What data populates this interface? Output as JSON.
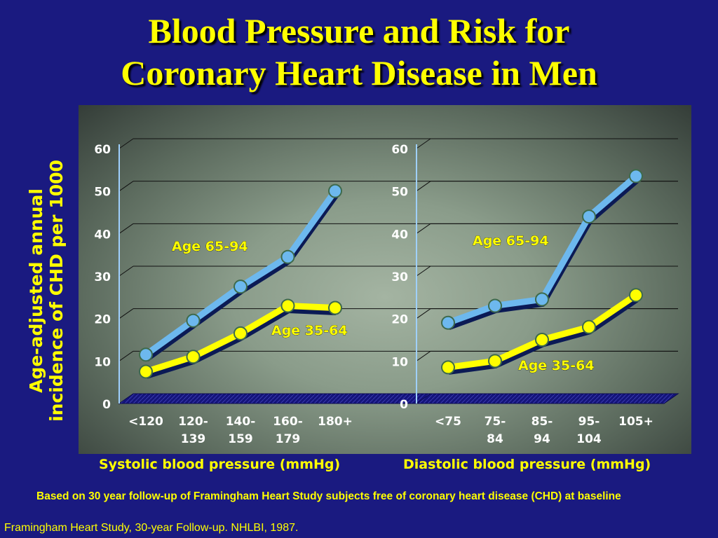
{
  "slide": {
    "title_line1": "Blood Pressure and Risk for",
    "title_line2": "Coronary Heart Disease in Men",
    "ylabel_line1": "Age-adjusted annual",
    "ylabel_line2": "incidence of CHD per 1000",
    "footnote": "Based on 30 year follow-up of Framingham Heart Study subjects free of coronary heart disease (CHD) at baseline",
    "source": "Framingham Heart Study, 30-year Follow-up. NHLBI, 1987."
  },
  "colors": {
    "background": "#1a1a80",
    "title": "#ffff00",
    "series_older": "#6db8ee",
    "series_younger": "#ffff00"
  },
  "chart_data": [
    {
      "type": "line",
      "xlabel": "Systolic blood pressure (mmHg)",
      "ylabel": "Age-adjusted annual incidence of CHD per 1000",
      "categories": [
        [
          "<120"
        ],
        [
          "120-",
          "139"
        ],
        [
          "140-",
          "159"
        ],
        [
          "160-",
          "179"
        ],
        [
          "180+"
        ]
      ],
      "ylim": [
        0,
        60
      ],
      "yticks": [
        0,
        10,
        20,
        30,
        40,
        50,
        60
      ],
      "grid": true,
      "series": [
        {
          "name": "Age 65-94",
          "values": [
            11.5,
            19.5,
            27.5,
            34.5,
            50
          ]
        },
        {
          "name": "Age 35-64",
          "values": [
            7.5,
            11,
            16.5,
            23,
            22.5
          ]
        }
      ]
    },
    {
      "type": "line",
      "xlabel": "Diastolic blood pressure (mmHg)",
      "ylabel": "Age-adjusted annual incidence of CHD per 1000",
      "categories": [
        [
          "<75"
        ],
        [
          "75-",
          "84"
        ],
        [
          "85-",
          "94"
        ],
        [
          "95-",
          "104"
        ],
        [
          "105+"
        ]
      ],
      "ylim": [
        0,
        60
      ],
      "yticks": [
        0,
        10,
        20,
        30,
        40,
        50,
        60
      ],
      "grid": true,
      "series": [
        {
          "name": "Age 65-94",
          "values": [
            19,
            23,
            24.5,
            44,
            53.5
          ]
        },
        {
          "name": "Age 35-64",
          "values": [
            8.5,
            10,
            15,
            18,
            25.5
          ]
        }
      ]
    }
  ]
}
